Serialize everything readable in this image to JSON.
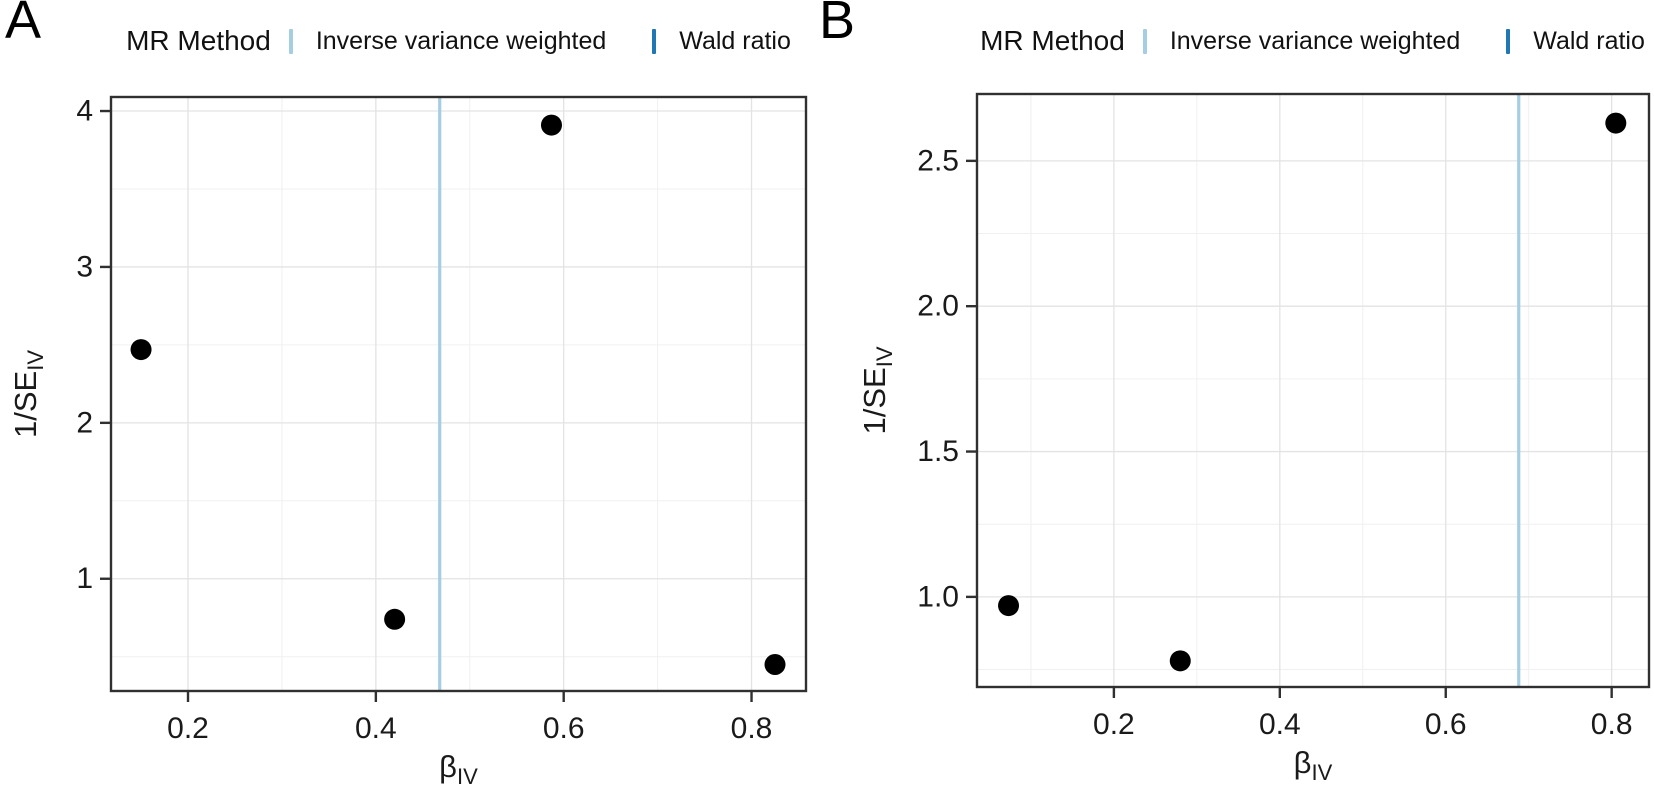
{
  "figure": {
    "background": "#ffffff",
    "description": "Two-panel MR funnel plot figure"
  },
  "theme": {
    "axis_color": "#303030",
    "grid_major_color": "#e3e3e3",
    "grid_minor_color": "#f0f0f0",
    "text_color": "#1a1a1a",
    "point_color": "#000000",
    "ivw_color": "#A6CEE3",
    "wald_color": "#1F78B4"
  },
  "chart_data": [
    {
      "type": "scatter",
      "panel_label": "A",
      "legend": {
        "title": "MR Method",
        "position": "top-center",
        "items": [
          {
            "label": "Inverse variance weighted",
            "color": "#A6CEE3",
            "glyph": "vertical-line"
          },
          {
            "label": "Wald ratio",
            "color": "#1F78B4",
            "glyph": "vertical-line"
          }
        ]
      },
      "xlabel": {
        "text": "β",
        "sub": "IV"
      },
      "ylabel": {
        "text": "1/SE",
        "sub": "IV"
      },
      "xlim": [
        0.118,
        0.858
      ],
      "ylim": [
        0.28,
        4.09
      ],
      "xticks": {
        "values": [
          0.2,
          0.4,
          0.6,
          0.8
        ],
        "labels": [
          "0.2",
          "0.4",
          "0.6",
          "0.8"
        ]
      },
      "yticks": {
        "values": [
          1,
          2,
          3,
          4
        ],
        "labels": [
          "1",
          "2",
          "3",
          "4"
        ]
      },
      "x_minor_gridlines": [
        0.3,
        0.5,
        0.7
      ],
      "y_minor_gridlines": [
        0.5,
        1.5,
        2.5,
        3.5
      ],
      "grid": "on",
      "points": {
        "color": "#000000",
        "xy": [
          [
            0.15,
            2.47
          ],
          [
            0.42,
            0.74
          ],
          [
            0.587,
            3.91
          ],
          [
            0.825,
            0.45
          ]
        ]
      },
      "vlines": [
        {
          "method": "Inverse variance weighted",
          "x": 0.468,
          "color": "#A6CEE3"
        }
      ]
    },
    {
      "type": "scatter",
      "panel_label": "B",
      "legend": {
        "title": "MR Method",
        "position": "top-center",
        "items": [
          {
            "label": "Inverse variance weighted",
            "color": "#A6CEE3",
            "glyph": "vertical-line"
          },
          {
            "label": "Wald ratio",
            "color": "#1F78B4",
            "glyph": "vertical-line"
          }
        ]
      },
      "xlabel": {
        "text": "β",
        "sub": "IV"
      },
      "ylabel": {
        "text": "1/SE",
        "sub": "IV"
      },
      "xlim": [
        0.035,
        0.845
      ],
      "ylim": [
        0.69,
        2.73
      ],
      "xticks": {
        "values": [
          0.2,
          0.4,
          0.6,
          0.8
        ],
        "labels": [
          "0.2",
          "0.4",
          "0.6",
          "0.8"
        ]
      },
      "yticks": {
        "values": [
          1.0,
          1.5,
          2.0,
          2.5
        ],
        "labels": [
          "1.0",
          "1.5",
          "2.0",
          "2.5"
        ]
      },
      "x_minor_gridlines": [
        0.1,
        0.3,
        0.5,
        0.7
      ],
      "y_minor_gridlines": [
        0.75,
        1.25,
        1.75,
        2.25
      ],
      "grid": "on",
      "points": {
        "color": "#000000",
        "xy": [
          [
            0.073,
            0.97
          ],
          [
            0.28,
            0.78
          ],
          [
            0.805,
            2.63
          ]
        ]
      },
      "vlines": [
        {
          "method": "Inverse variance weighted",
          "x": 0.688,
          "color": "#A6CEE3"
        }
      ]
    }
  ]
}
